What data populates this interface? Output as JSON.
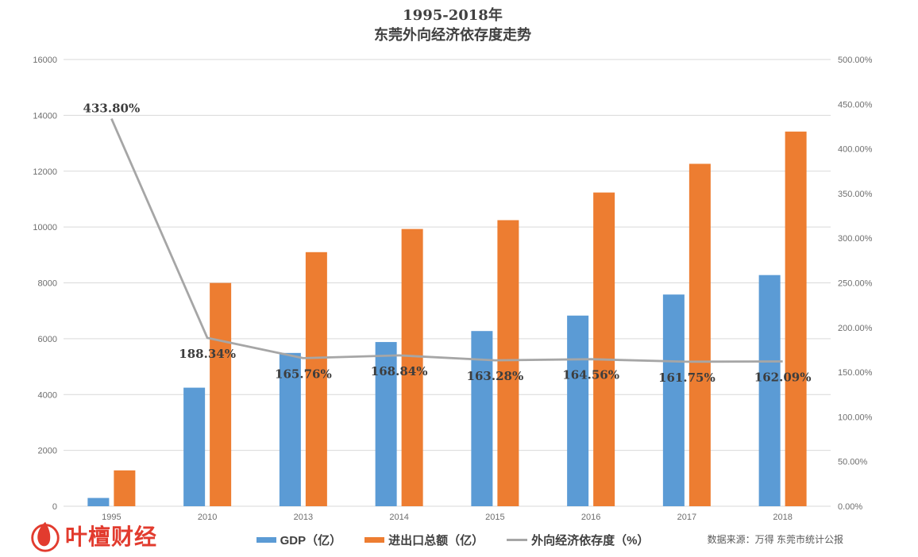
{
  "title": {
    "line1": "1995-2018年",
    "line2": "东莞外向经济依存度走势"
  },
  "source": {
    "text": "数据来源：万得 东莞市统计公报"
  },
  "logo": {
    "text": "叶檀财经",
    "color": "#E23B2E"
  },
  "colors": {
    "gdp_bar": "#5B9BD5",
    "import_export_bar": "#ED7D31",
    "dependence_line": "#A6A6A6",
    "grid": "#D9D9D9",
    "axis_text": "#6E6E6E",
    "data_label_text": "#3D3D3D",
    "title_text": "#404040"
  },
  "chart_data": {
    "type": "bar",
    "subtype": "combo-bar-line-dual-axis",
    "title": "1995-2018年 东莞外向经济依存度走势",
    "categories": [
      "1995",
      "2010",
      "2013",
      "2014",
      "2015",
      "2016",
      "2017",
      "2018"
    ],
    "series": [
      {
        "name": "GDP（亿）",
        "type": "bar",
        "axis": "left",
        "color": "#5B9BD5",
        "values": [
          296,
          4246,
          5490,
          5881,
          6275,
          6828,
          7582,
          8279
        ]
      },
      {
        "name": "进出口总额（亿）",
        "type": "bar",
        "axis": "left",
        "color": "#ED7D31",
        "values": [
          1284,
          7997,
          9100,
          9930,
          10246,
          11236,
          12264,
          13419
        ]
      },
      {
        "name": "外向经济依存度（%）",
        "type": "line",
        "axis": "right",
        "color": "#A6A6A6",
        "values": [
          433.8,
          188.34,
          165.76,
          168.84,
          163.28,
          164.56,
          161.75,
          162.09
        ],
        "point_labels": [
          "433.80%",
          "188.34%",
          "165.76%",
          "168.84%",
          "163.28%",
          "164.56%",
          "161.75%",
          "162.09%"
        ]
      }
    ],
    "left_axis": {
      "min": 0,
      "max": 16000,
      "tick_labels": [
        "0",
        "2000",
        "4000",
        "6000",
        "8000",
        "10000",
        "12000",
        "14000",
        "16000"
      ]
    },
    "right_axis": {
      "min": 0,
      "max": 500,
      "tick_labels": [
        "0.00%",
        "50.00%",
        "100.00%",
        "150.00%",
        "200.00%",
        "250.00%",
        "300.00%",
        "350.00%",
        "400.00%",
        "450.00%",
        "500.00%"
      ]
    },
    "grid": true,
    "legend_position": "bottom"
  }
}
